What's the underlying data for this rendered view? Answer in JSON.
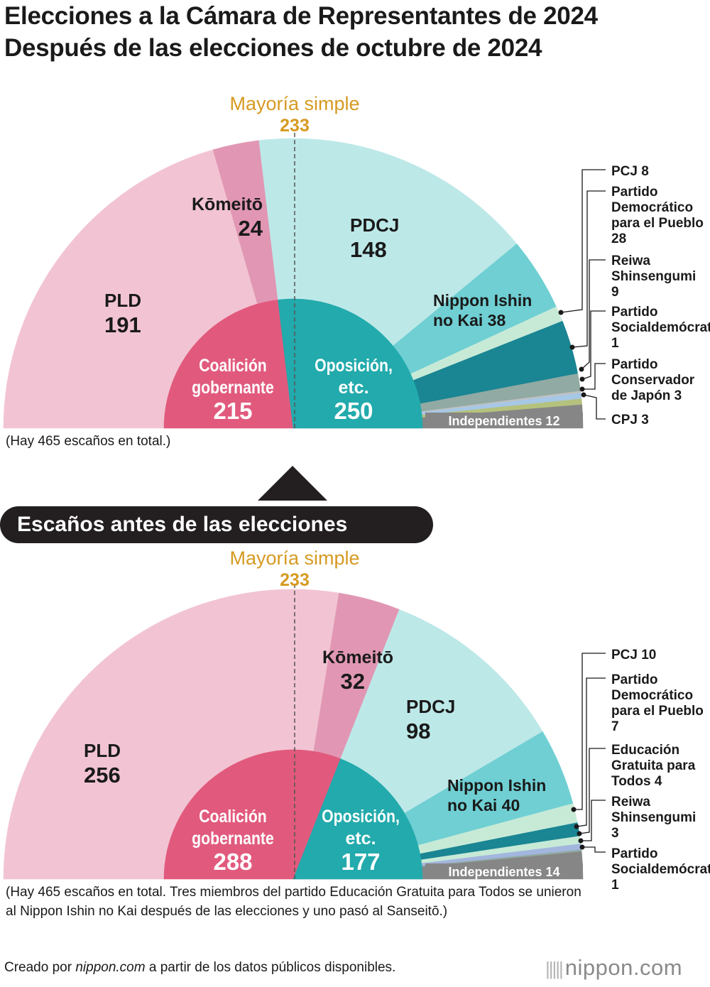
{
  "title_line1": "Elecciones a la Cámara de Representantes de 2024",
  "title_line2": "Después de las elecciones de octubre de 2024",
  "section_before": "Escaños antes de las elecciones",
  "credit_prefix": "Creado por ",
  "credit_site": "nippon.com",
  "credit_suffix": " a partir de los datos públicos disponibles.",
  "logo": "nippon.com",
  "logo_icon": "bars-icon",
  "colors": {
    "ldp": "#f2c4d3",
    "komeito": "#e197b3",
    "cdp": "#bde8e8",
    "ishin": "#6fcfd3",
    "jcp": "#c7ead7",
    "dpfp": "#1a8593",
    "reiwa": "#91aaa3",
    "sdp": "#c0c0c0",
    "cpj_cons": "#a6c8e6",
    "sanseito": "#b5c27d",
    "edu": "#a3b6de",
    "ind": "#868686",
    "ruling": "#e15a7d",
    "opposition": "#22aaac",
    "majority": "#d69a22"
  },
  "chart_data": [
    {
      "id": "after",
      "type": "pie",
      "subtype": "half-donut (parliament)",
      "total_seats": 465,
      "note": "(Hay 465 escaños en total.)",
      "majority": {
        "label": "Mayoría simple",
        "value": 233
      },
      "parties": [
        {
          "name": "PLD",
          "seats": 191,
          "color": "#f2c4d3"
        },
        {
          "name": "Kōmeitō",
          "seats": 24,
          "color": "#e197b3"
        },
        {
          "name": "PDCJ",
          "seats": 148,
          "color": "#bde8e8"
        },
        {
          "name": "Nippon Ishin no Kai",
          "seats": 38,
          "color": "#6fcfd3"
        },
        {
          "name": "PCJ",
          "seats": 8,
          "color": "#c7ead7"
        },
        {
          "name": "Partido Democrático para el Pueblo",
          "seats": 28,
          "color": "#1a8593"
        },
        {
          "name": "Reiwa Shinsengumi",
          "seats": 9,
          "color": "#91aaa3"
        },
        {
          "name": "Partido Socialdemócrata",
          "seats": 1,
          "color": "#c0c0c0"
        },
        {
          "name": "Partido Conservador de Japón",
          "seats": 3,
          "color": "#a6c8e6"
        },
        {
          "name": "CPJ",
          "seats": 3,
          "color": "#b5c27d"
        },
        {
          "name": "Independientes",
          "seats": 12,
          "color": "#868686"
        }
      ],
      "blocs": [
        {
          "name": "Coalición gobernante",
          "seats": 215,
          "color": "#e15a7d"
        },
        {
          "name": "Oposición, etc.",
          "seats": 250,
          "color": "#22aaac"
        }
      ],
      "labels": {
        "pld": [
          "PLD",
          "191"
        ],
        "komeito": [
          "Kōmeitō",
          "24"
        ],
        "cdp": [
          "PDCJ",
          "148"
        ],
        "ishin": [
          "Nippon Ishin",
          "no Kai 38"
        ],
        "ruling": [
          "Coalición",
          "gobernante",
          "215"
        ],
        "opposition": [
          "Oposición,",
          "etc.",
          "250"
        ],
        "independents": "Independientes 12",
        "callouts": [
          [
            "PCJ 8"
          ],
          [
            "Partido",
            "Democrático",
            "para el Pueblo",
            "28"
          ],
          [
            "Reiwa",
            "Shinsengumi",
            "9"
          ],
          [
            "Partido",
            "Socialdemócrata",
            "1"
          ],
          [
            "Partido",
            "Conservador",
            "de Japón 3"
          ],
          [
            "CPJ 3"
          ]
        ]
      }
    },
    {
      "id": "before",
      "type": "pie",
      "subtype": "half-donut (parliament)",
      "total_seats": 465,
      "note": "(Hay 465 escaños en total. Tres miembros del partido Educación Gratuita para Todos se unieron al Nippon Ishin no Kai después de las elecciones y uno pasó al Sanseitō.)",
      "majority": {
        "label": "Mayoría simple",
        "value": 233
      },
      "parties": [
        {
          "name": "PLD",
          "seats": 256,
          "color": "#f2c4d3"
        },
        {
          "name": "Kōmeitō",
          "seats": 32,
          "color": "#e197b3"
        },
        {
          "name": "PDCJ",
          "seats": 98,
          "color": "#bde8e8"
        },
        {
          "name": "Nippon Ishin no Kai",
          "seats": 40,
          "color": "#6fcfd3"
        },
        {
          "name": "PCJ",
          "seats": 10,
          "color": "#c7ead7"
        },
        {
          "name": "Partido Democrático para el Pueblo",
          "seats": 7,
          "color": "#1a8593"
        },
        {
          "name": "Educación Gratuita para Todos",
          "seats": 4,
          "color": "#c7ead7"
        },
        {
          "name": "Reiwa Shinsengumi",
          "seats": 3,
          "color": "#a3b6de"
        },
        {
          "name": "Partido Socialdemócrata",
          "seats": 1,
          "color": "#91aaa3"
        },
        {
          "name": "Independientes",
          "seats": 14,
          "color": "#868686"
        }
      ],
      "blocs": [
        {
          "name": "Coalición gobernante",
          "seats": 288,
          "color": "#e15a7d"
        },
        {
          "name": "Oposición, etc.",
          "seats": 177,
          "color": "#22aaac"
        }
      ],
      "labels": {
        "pld": [
          "PLD",
          "256"
        ],
        "komeito": [
          "Kōmeitō",
          "32"
        ],
        "cdp": [
          "PDCJ",
          "98"
        ],
        "ishin": [
          "Nippon Ishin",
          "no Kai 40"
        ],
        "ruling": [
          "Coalición",
          "gobernante",
          "288"
        ],
        "opposition": [
          "Oposición,",
          "etc.",
          "177"
        ],
        "independents": "Independientes 14",
        "callouts": [
          [
            "PCJ 10"
          ],
          [
            "Partido",
            "Democrático",
            "para el Pueblo",
            "7"
          ],
          [
            "Educación",
            "Gratuita para",
            "Todos 4"
          ],
          [
            "Reiwa",
            "Shinsengumi",
            "3"
          ],
          [
            "Partido",
            "Socialdemócrata",
            "1"
          ]
        ]
      }
    }
  ]
}
